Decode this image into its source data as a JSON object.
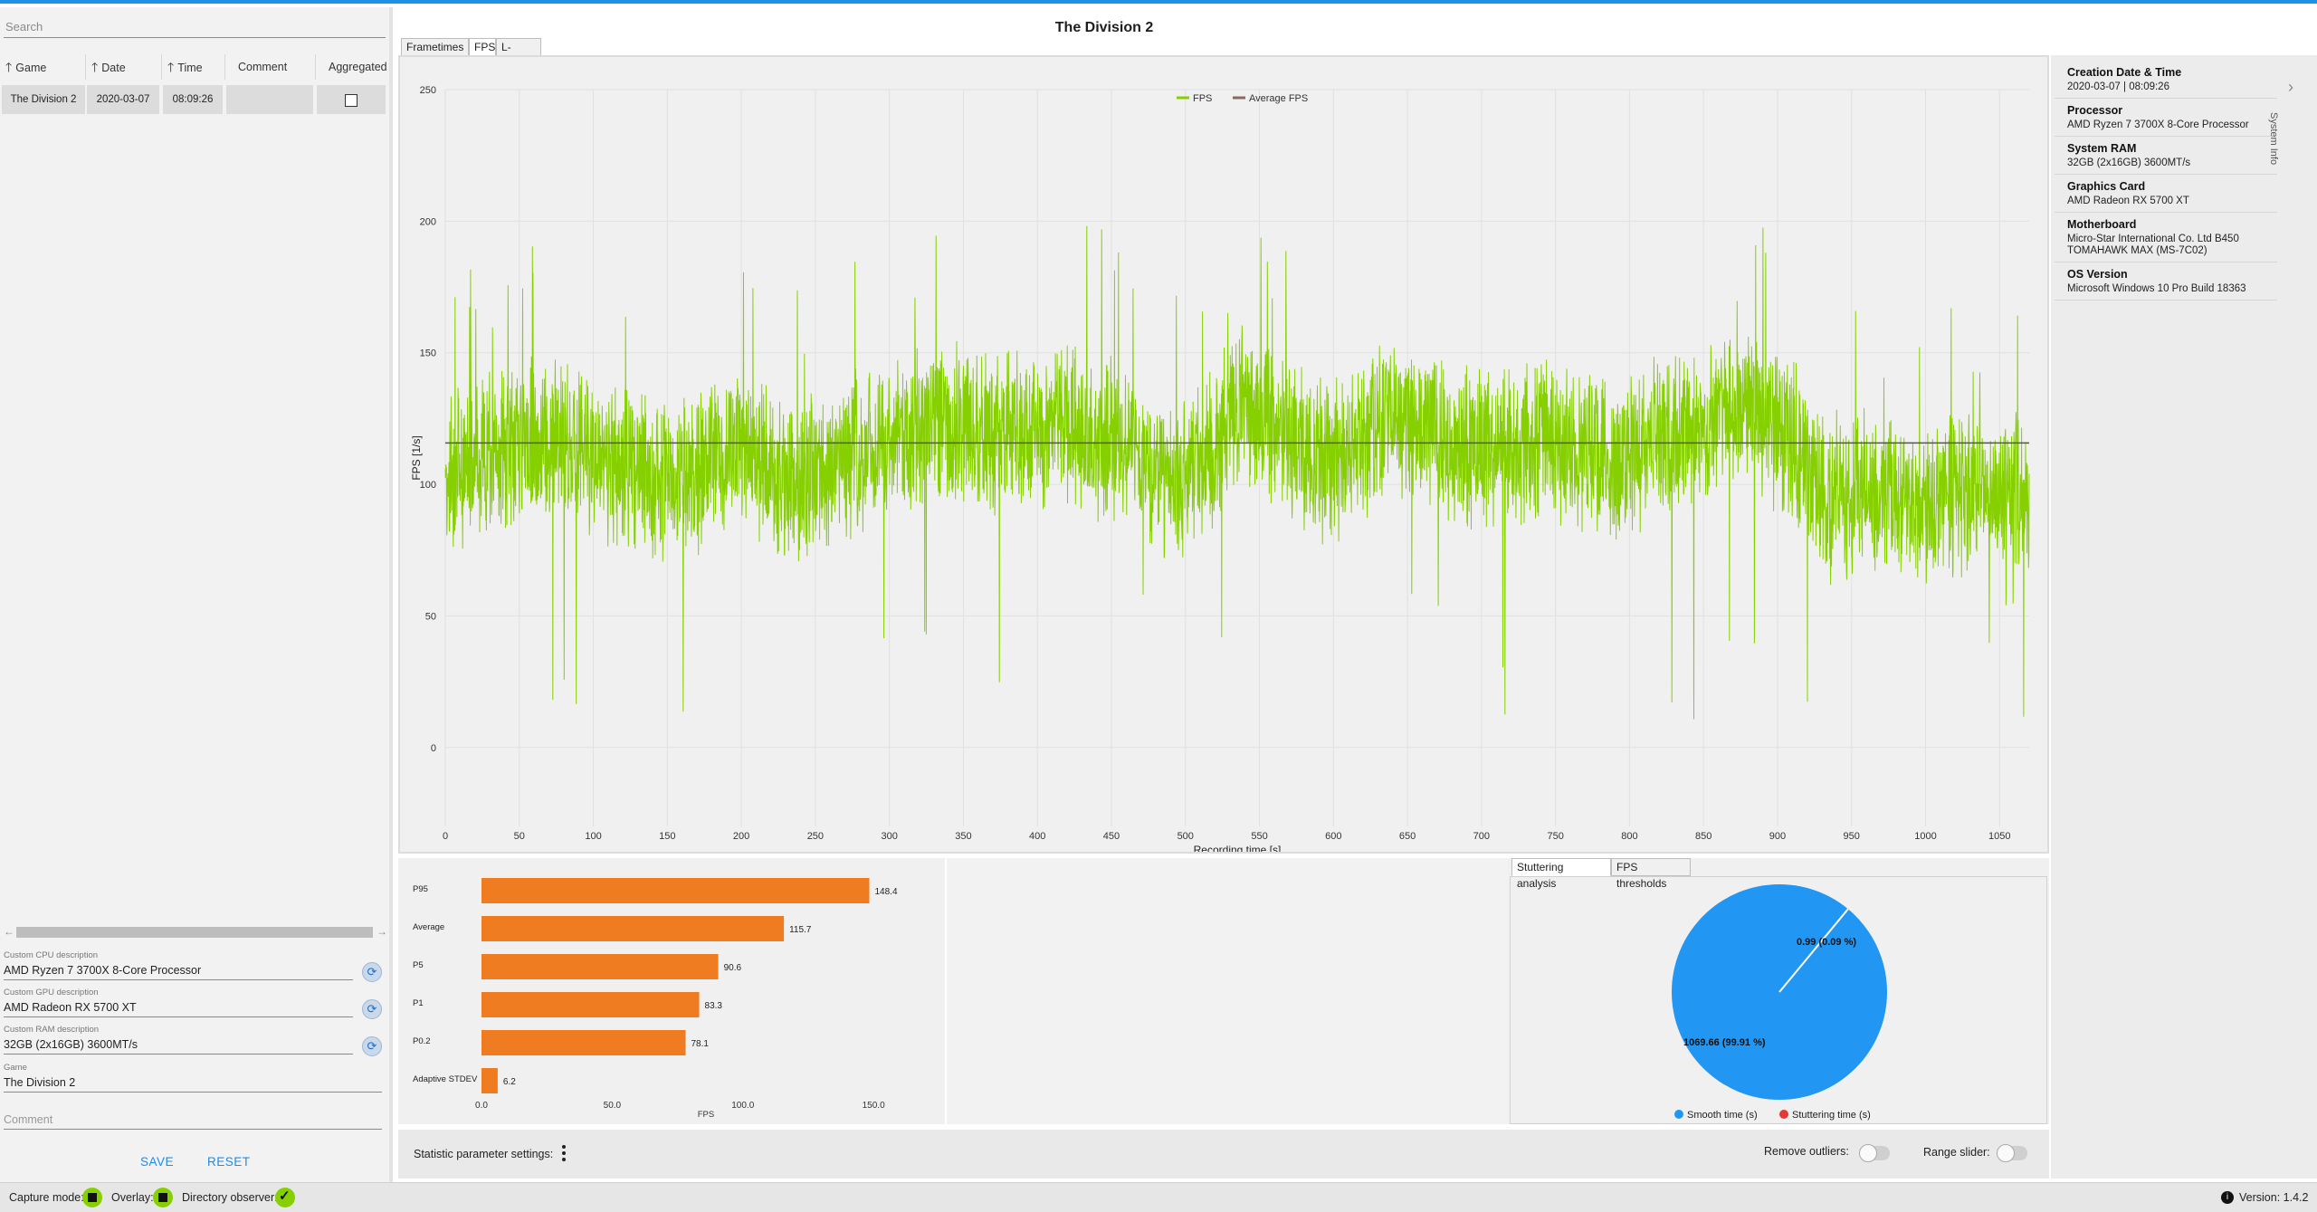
{
  "search": {
    "placeholder": "Search"
  },
  "grid": {
    "columns": [
      "Game",
      "Date",
      "Time",
      "Comment",
      "Aggregated"
    ],
    "rows": [
      {
        "game": "The Division 2",
        "date": "2020-03-07",
        "time": "08:09:26",
        "comment": "",
        "aggregated": false
      }
    ]
  },
  "custom": {
    "cpu_label": "Custom CPU description",
    "cpu_value": "AMD Ryzen 7 3700X 8-Core Processor",
    "gpu_label": "Custom GPU description",
    "gpu_value": "AMD Radeon RX 5700 XT",
    "ram_label": "Custom RAM description",
    "ram_value": "32GB (2x16GB) 3600MT/s",
    "game_label": "Game",
    "game_value": "The Division 2",
    "comment_placeholder": "Comment"
  },
  "buttons": {
    "save": "SAVE",
    "reset": "RESET"
  },
  "status": {
    "capture": "Capture mode:",
    "overlay": "Overlay:",
    "observer": "Directory observer:",
    "version": "Version:  1.4.2"
  },
  "title": "The Division 2",
  "tabs": [
    "Frametimes",
    "FPS",
    "L-shape"
  ],
  "fps_chart": {
    "type": "line",
    "xlabel": "Recording time [s]",
    "ylabel": "FPS [1/s]",
    "x_ticks": [
      "0",
      "50",
      "100",
      "150",
      "200",
      "250",
      "300",
      "350",
      "400",
      "450",
      "500",
      "550",
      "600",
      "650",
      "700",
      "750",
      "800",
      "850",
      "900",
      "950",
      "1000",
      "1050"
    ],
    "y_ticks": [
      "0",
      "50",
      "100",
      "150",
      "200",
      "250"
    ],
    "legend": [
      "FPS",
      "Average FPS"
    ],
    "series_color": "#86d000",
    "avg_color": "#555555",
    "average": 115.7,
    "xlim": [
      0,
      1070
    ],
    "ylim": [
      -30,
      250
    ]
  },
  "chart_data": {
    "type": "bar",
    "categories": [
      "P95",
      "Average",
      "P5",
      "P1",
      "P0.2",
      "Adaptive STDEV"
    ],
    "values": [
      148.4,
      115.7,
      90.6,
      83.3,
      78.1,
      6.2
    ],
    "value_labels": [
      "148.4",
      "115.7",
      "90.6",
      "83.3",
      "78.1",
      "6.2"
    ],
    "xlabel": "FPS",
    "x_ticks": [
      "0.0",
      "50.0",
      "100.0",
      "150.0"
    ],
    "xlim": [
      0,
      160
    ],
    "color": "#f07c22"
  },
  "stutter": {
    "tabs": [
      "Stuttering analysis",
      "FPS thresholds"
    ],
    "smooth_label": "1069.66 (99.91 %)",
    "stutter_label": "0.99 (0.09 %)",
    "smooth_fraction": 0.9991,
    "legend_smooth": "Smooth time (s)",
    "legend_stutter": "Stuttering time (s)",
    "smooth_color": "#2196f3",
    "stutter_color": "#e53935"
  },
  "settings": {
    "stat_label": "Statistic parameter settings:",
    "outliers": "Remove outliers:",
    "range": "Range slider:"
  },
  "system_info": {
    "side_label": "System Info",
    "items": [
      {
        "k": "Creation Date & Time",
        "v": "2020-03-07  |  08:09:26"
      },
      {
        "k": "Processor",
        "v": "AMD Ryzen 7 3700X 8-Core Processor"
      },
      {
        "k": "System RAM",
        "v": "32GB (2x16GB) 3600MT/s"
      },
      {
        "k": "Graphics Card",
        "v": "AMD Radeon RX 5700 XT"
      },
      {
        "k": "Motherboard",
        "v": "Micro-Star International Co. Ltd B450 TOMAHAWK MAX (MS-7C02)"
      },
      {
        "k": "OS Version",
        "v": "Microsoft Windows 10 Pro Build 18363"
      }
    ]
  }
}
